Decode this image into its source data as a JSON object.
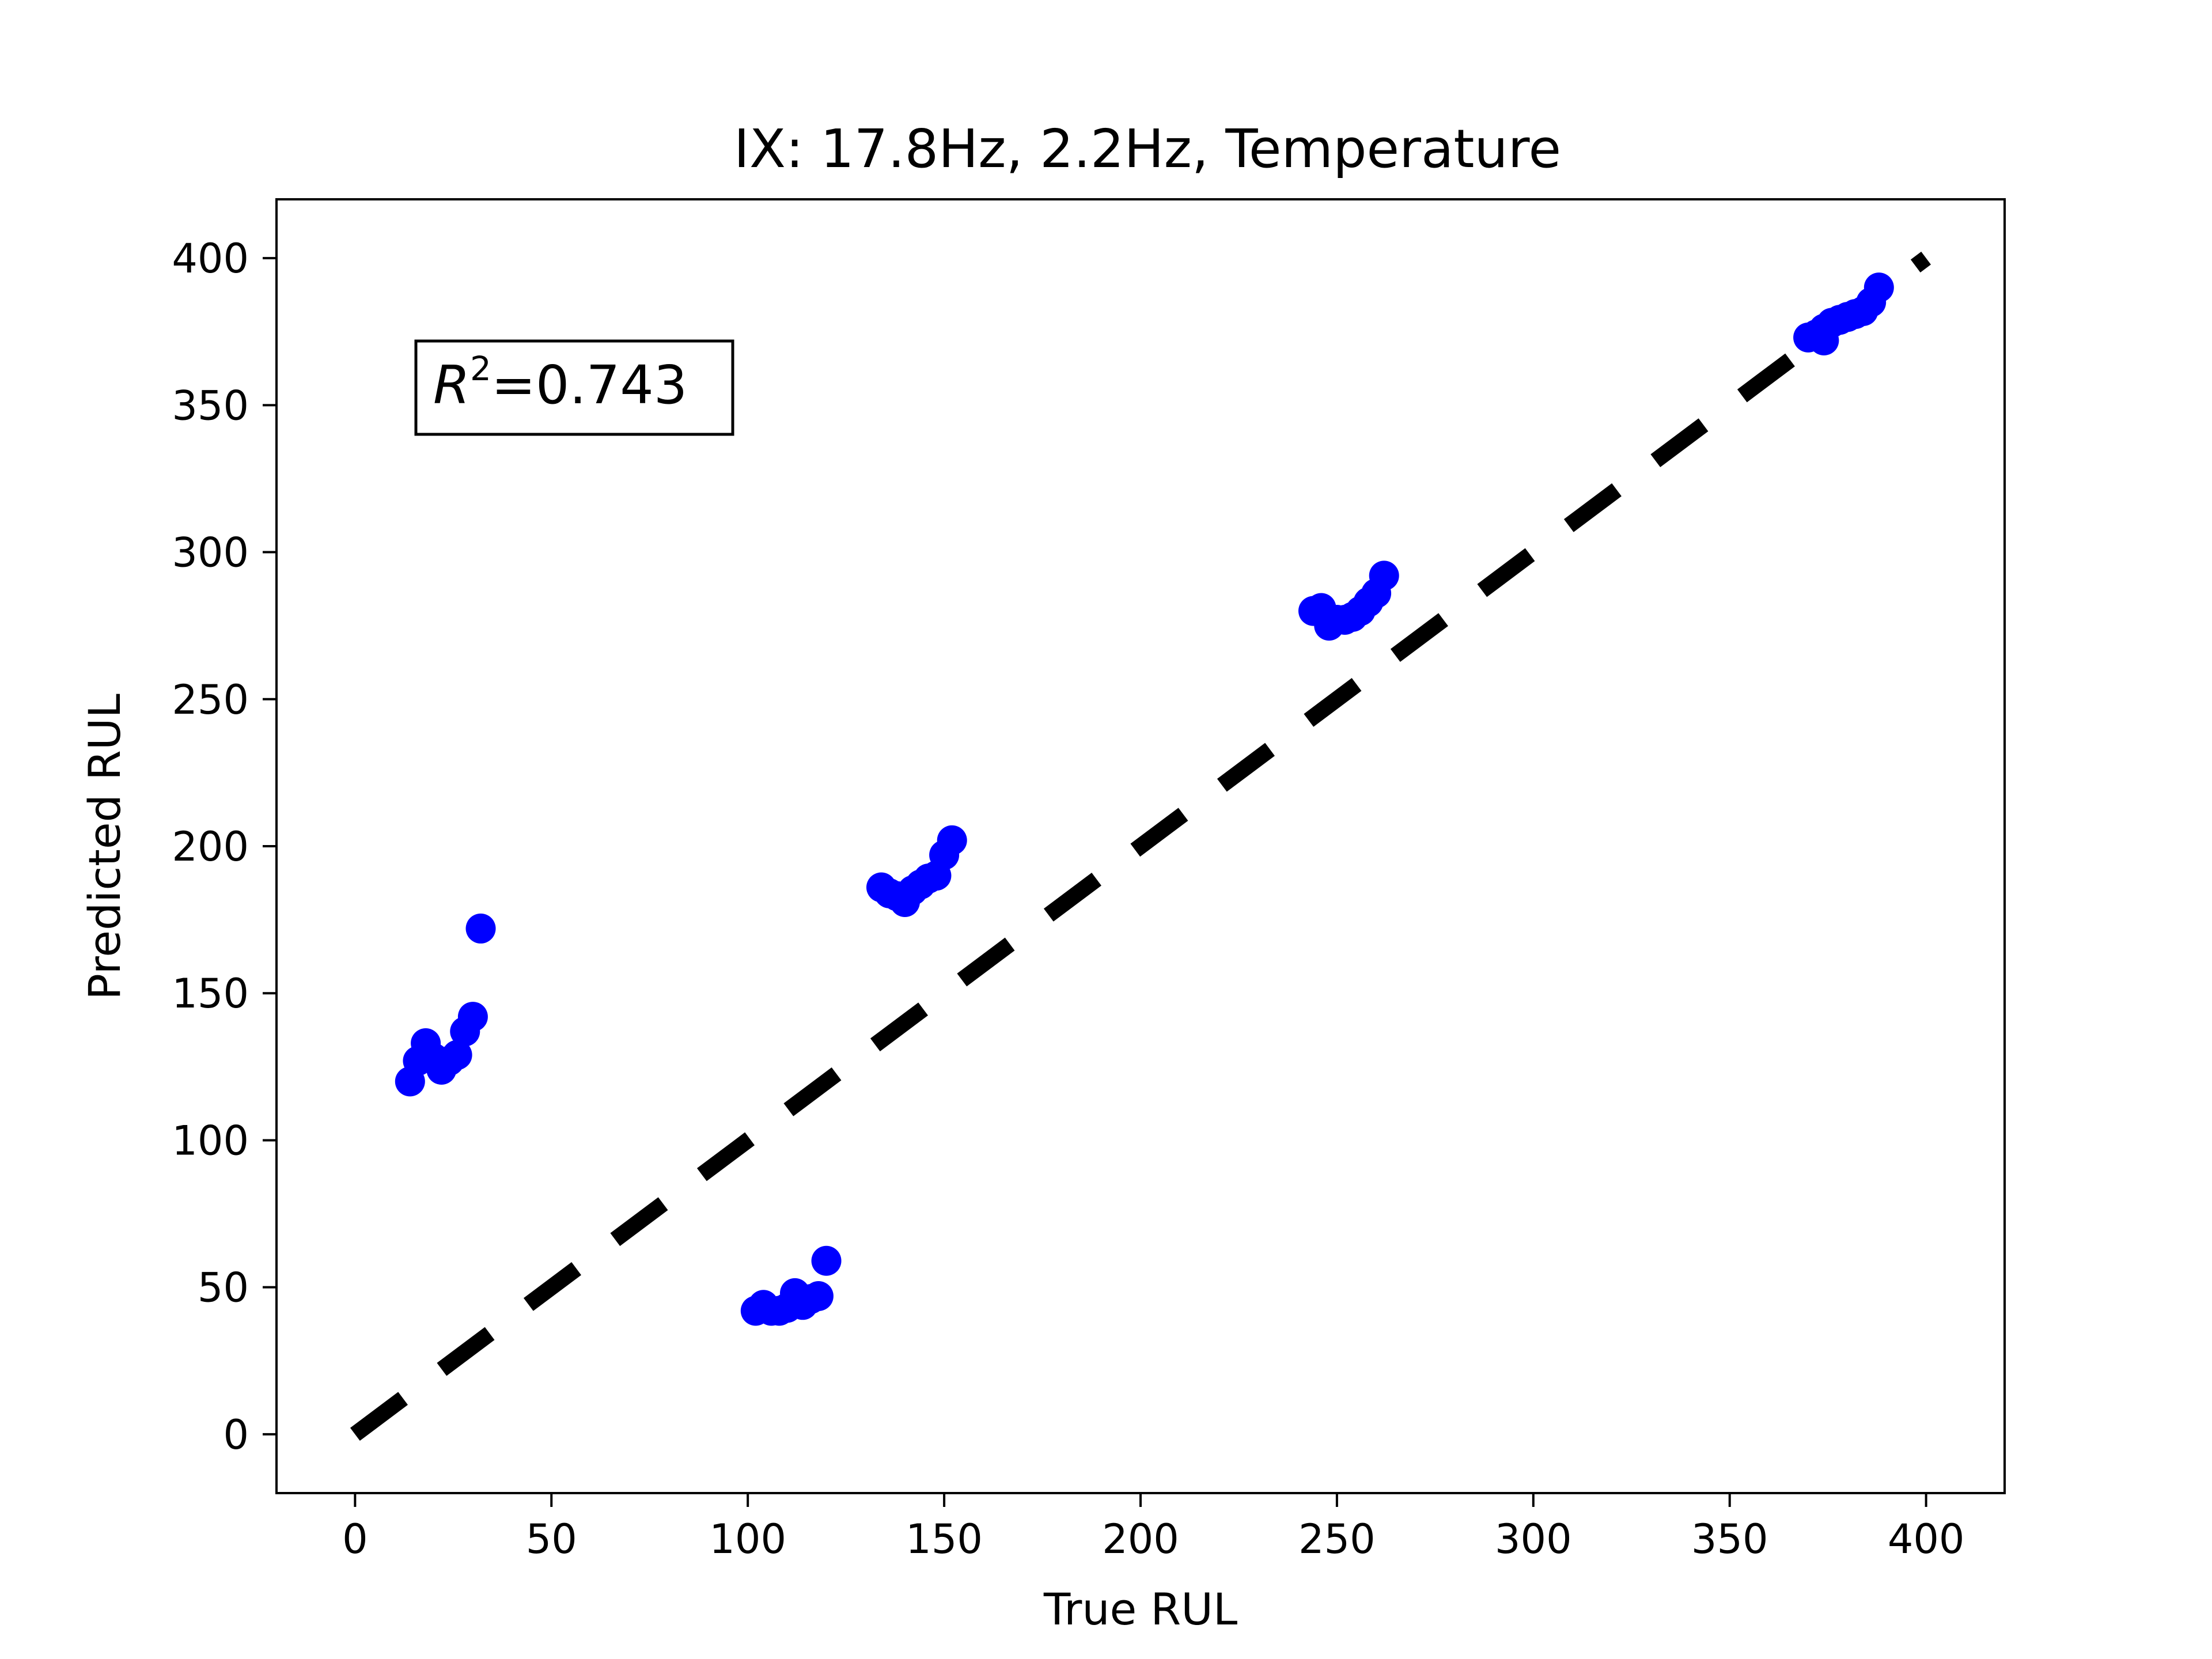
{
  "chart_data": {
    "type": "scatter",
    "title": "IX: 17.8Hz, 2.2Hz, Temperature",
    "xlabel": "True RUL",
    "ylabel": "Predicted RUL",
    "xlim": [
      -20,
      420
    ],
    "ylim": [
      -20,
      420
    ],
    "xticks": [
      0,
      50,
      100,
      150,
      200,
      250,
      300,
      350,
      400
    ],
    "yticks": [
      0,
      50,
      100,
      150,
      200,
      250,
      300,
      350,
      400
    ],
    "grid": false,
    "annotation": {
      "prefix": "R",
      "superscript": "2",
      "text": "=0.743",
      "position": "top-left"
    },
    "reference_line": {
      "x": [
        0,
        400
      ],
      "y": [
        0,
        400
      ],
      "style": "dashed",
      "color": "#000000"
    },
    "series": [
      {
        "color": "#0000ff",
        "marker": "circle",
        "points": [
          [
            14,
            120
          ],
          [
            16,
            127
          ],
          [
            18,
            130
          ],
          [
            18,
            133
          ],
          [
            20,
            128
          ],
          [
            22,
            124
          ],
          [
            24,
            127
          ],
          [
            26,
            129
          ],
          [
            28,
            137
          ],
          [
            30,
            142
          ],
          [
            32,
            172
          ],
          [
            102,
            42
          ],
          [
            104,
            44
          ],
          [
            106,
            42
          ],
          [
            108,
            42
          ],
          [
            110,
            43
          ],
          [
            112,
            48
          ],
          [
            114,
            44
          ],
          [
            116,
            46
          ],
          [
            118,
            47
          ],
          [
            120,
            59
          ],
          [
            134,
            186
          ],
          [
            136,
            184
          ],
          [
            138,
            183
          ],
          [
            140,
            181
          ],
          [
            142,
            185
          ],
          [
            144,
            187
          ],
          [
            146,
            189
          ],
          [
            148,
            190
          ],
          [
            150,
            197
          ],
          [
            152,
            202
          ],
          [
            244,
            280
          ],
          [
            246,
            281
          ],
          [
            248,
            275
          ],
          [
            250,
            277
          ],
          [
            252,
            277
          ],
          [
            254,
            278
          ],
          [
            256,
            280
          ],
          [
            258,
            283
          ],
          [
            260,
            286
          ],
          [
            262,
            292
          ],
          [
            370,
            373
          ],
          [
            372,
            374
          ],
          [
            374,
            376
          ],
          [
            374,
            372
          ],
          [
            376,
            378
          ],
          [
            378,
            379
          ],
          [
            380,
            380
          ],
          [
            382,
            381
          ],
          [
            384,
            382
          ],
          [
            386,
            385
          ],
          [
            388,
            390
          ]
        ]
      }
    ]
  }
}
